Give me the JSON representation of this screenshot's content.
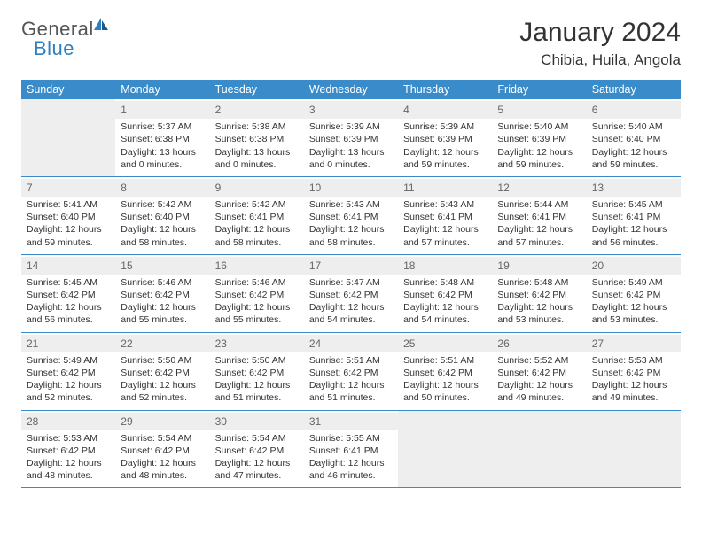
{
  "logo": {
    "text1": "General",
    "text2": "Blue"
  },
  "title": "January 2024",
  "location": "Chibia, Huila, Angola",
  "weekdays": [
    "Sunday",
    "Monday",
    "Tuesday",
    "Wednesday",
    "Thursday",
    "Friday",
    "Saturday"
  ],
  "colors": {
    "header_bg": "#3a8bc9",
    "header_text": "#ffffff",
    "logo_blue": "#2d7fc1",
    "daynum_bg": "#eeeeee",
    "border": "#3a8bc9"
  },
  "weeks": [
    [
      {
        "empty": true
      },
      {
        "num": "1",
        "sunrise": "Sunrise: 5:37 AM",
        "sunset": "Sunset: 6:38 PM",
        "daylight1": "Daylight: 13 hours",
        "daylight2": "and 0 minutes."
      },
      {
        "num": "2",
        "sunrise": "Sunrise: 5:38 AM",
        "sunset": "Sunset: 6:38 PM",
        "daylight1": "Daylight: 13 hours",
        "daylight2": "and 0 minutes."
      },
      {
        "num": "3",
        "sunrise": "Sunrise: 5:39 AM",
        "sunset": "Sunset: 6:39 PM",
        "daylight1": "Daylight: 13 hours",
        "daylight2": "and 0 minutes."
      },
      {
        "num": "4",
        "sunrise": "Sunrise: 5:39 AM",
        "sunset": "Sunset: 6:39 PM",
        "daylight1": "Daylight: 12 hours",
        "daylight2": "and 59 minutes."
      },
      {
        "num": "5",
        "sunrise": "Sunrise: 5:40 AM",
        "sunset": "Sunset: 6:39 PM",
        "daylight1": "Daylight: 12 hours",
        "daylight2": "and 59 minutes."
      },
      {
        "num": "6",
        "sunrise": "Sunrise: 5:40 AM",
        "sunset": "Sunset: 6:40 PM",
        "daylight1": "Daylight: 12 hours",
        "daylight2": "and 59 minutes."
      }
    ],
    [
      {
        "num": "7",
        "sunrise": "Sunrise: 5:41 AM",
        "sunset": "Sunset: 6:40 PM",
        "daylight1": "Daylight: 12 hours",
        "daylight2": "and 59 minutes."
      },
      {
        "num": "8",
        "sunrise": "Sunrise: 5:42 AM",
        "sunset": "Sunset: 6:40 PM",
        "daylight1": "Daylight: 12 hours",
        "daylight2": "and 58 minutes."
      },
      {
        "num": "9",
        "sunrise": "Sunrise: 5:42 AM",
        "sunset": "Sunset: 6:41 PM",
        "daylight1": "Daylight: 12 hours",
        "daylight2": "and 58 minutes."
      },
      {
        "num": "10",
        "sunrise": "Sunrise: 5:43 AM",
        "sunset": "Sunset: 6:41 PM",
        "daylight1": "Daylight: 12 hours",
        "daylight2": "and 58 minutes."
      },
      {
        "num": "11",
        "sunrise": "Sunrise: 5:43 AM",
        "sunset": "Sunset: 6:41 PM",
        "daylight1": "Daylight: 12 hours",
        "daylight2": "and 57 minutes."
      },
      {
        "num": "12",
        "sunrise": "Sunrise: 5:44 AM",
        "sunset": "Sunset: 6:41 PM",
        "daylight1": "Daylight: 12 hours",
        "daylight2": "and 57 minutes."
      },
      {
        "num": "13",
        "sunrise": "Sunrise: 5:45 AM",
        "sunset": "Sunset: 6:41 PM",
        "daylight1": "Daylight: 12 hours",
        "daylight2": "and 56 minutes."
      }
    ],
    [
      {
        "num": "14",
        "sunrise": "Sunrise: 5:45 AM",
        "sunset": "Sunset: 6:42 PM",
        "daylight1": "Daylight: 12 hours",
        "daylight2": "and 56 minutes."
      },
      {
        "num": "15",
        "sunrise": "Sunrise: 5:46 AM",
        "sunset": "Sunset: 6:42 PM",
        "daylight1": "Daylight: 12 hours",
        "daylight2": "and 55 minutes."
      },
      {
        "num": "16",
        "sunrise": "Sunrise: 5:46 AM",
        "sunset": "Sunset: 6:42 PM",
        "daylight1": "Daylight: 12 hours",
        "daylight2": "and 55 minutes."
      },
      {
        "num": "17",
        "sunrise": "Sunrise: 5:47 AM",
        "sunset": "Sunset: 6:42 PM",
        "daylight1": "Daylight: 12 hours",
        "daylight2": "and 54 minutes."
      },
      {
        "num": "18",
        "sunrise": "Sunrise: 5:48 AM",
        "sunset": "Sunset: 6:42 PM",
        "daylight1": "Daylight: 12 hours",
        "daylight2": "and 54 minutes."
      },
      {
        "num": "19",
        "sunrise": "Sunrise: 5:48 AM",
        "sunset": "Sunset: 6:42 PM",
        "daylight1": "Daylight: 12 hours",
        "daylight2": "and 53 minutes."
      },
      {
        "num": "20",
        "sunrise": "Sunrise: 5:49 AM",
        "sunset": "Sunset: 6:42 PM",
        "daylight1": "Daylight: 12 hours",
        "daylight2": "and 53 minutes."
      }
    ],
    [
      {
        "num": "21",
        "sunrise": "Sunrise: 5:49 AM",
        "sunset": "Sunset: 6:42 PM",
        "daylight1": "Daylight: 12 hours",
        "daylight2": "and 52 minutes."
      },
      {
        "num": "22",
        "sunrise": "Sunrise: 5:50 AM",
        "sunset": "Sunset: 6:42 PM",
        "daylight1": "Daylight: 12 hours",
        "daylight2": "and 52 minutes."
      },
      {
        "num": "23",
        "sunrise": "Sunrise: 5:50 AM",
        "sunset": "Sunset: 6:42 PM",
        "daylight1": "Daylight: 12 hours",
        "daylight2": "and 51 minutes."
      },
      {
        "num": "24",
        "sunrise": "Sunrise: 5:51 AM",
        "sunset": "Sunset: 6:42 PM",
        "daylight1": "Daylight: 12 hours",
        "daylight2": "and 51 minutes."
      },
      {
        "num": "25",
        "sunrise": "Sunrise: 5:51 AM",
        "sunset": "Sunset: 6:42 PM",
        "daylight1": "Daylight: 12 hours",
        "daylight2": "and 50 minutes."
      },
      {
        "num": "26",
        "sunrise": "Sunrise: 5:52 AM",
        "sunset": "Sunset: 6:42 PM",
        "daylight1": "Daylight: 12 hours",
        "daylight2": "and 49 minutes."
      },
      {
        "num": "27",
        "sunrise": "Sunrise: 5:53 AM",
        "sunset": "Sunset: 6:42 PM",
        "daylight1": "Daylight: 12 hours",
        "daylight2": "and 49 minutes."
      }
    ],
    [
      {
        "num": "28",
        "sunrise": "Sunrise: 5:53 AM",
        "sunset": "Sunset: 6:42 PM",
        "daylight1": "Daylight: 12 hours",
        "daylight2": "and 48 minutes."
      },
      {
        "num": "29",
        "sunrise": "Sunrise: 5:54 AM",
        "sunset": "Sunset: 6:42 PM",
        "daylight1": "Daylight: 12 hours",
        "daylight2": "and 48 minutes."
      },
      {
        "num": "30",
        "sunrise": "Sunrise: 5:54 AM",
        "sunset": "Sunset: 6:42 PM",
        "daylight1": "Daylight: 12 hours",
        "daylight2": "and 47 minutes."
      },
      {
        "num": "31",
        "sunrise": "Sunrise: 5:55 AM",
        "sunset": "Sunset: 6:41 PM",
        "daylight1": "Daylight: 12 hours",
        "daylight2": "and 46 minutes."
      },
      {
        "empty": true
      },
      {
        "empty": true
      },
      {
        "empty": true
      }
    ]
  ]
}
